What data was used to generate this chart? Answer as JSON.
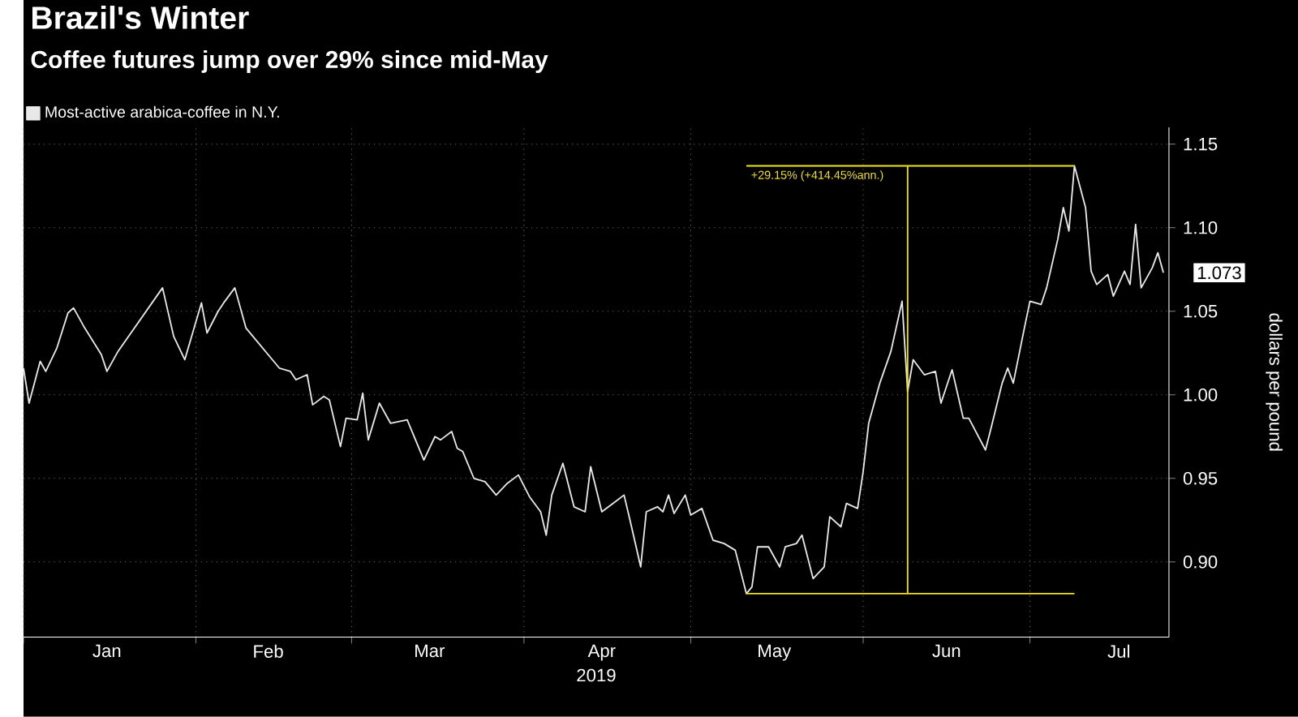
{
  "chart_data": {
    "type": "line",
    "title": "Brazil's Winter",
    "subtitle": "Coffee futures jump over 29% since mid-May",
    "xlabel": "2019",
    "ylabel": "dollars per pound",
    "xlim": [
      "2019-01-01",
      "2019-07-26"
    ],
    "ylim": [
      0.855,
      1.16
    ],
    "xticks": [
      {
        "value": "2019-01-01",
        "label": null
      },
      {
        "value": "2019-02-01",
        "label": null
      },
      {
        "value": "2019-03-01",
        "label": null
      },
      {
        "value": "2019-04-01",
        "label": null
      },
      {
        "value": "2019-05-01",
        "label": null
      },
      {
        "value": "2019-06-01",
        "label": null
      },
      {
        "value": "2019-07-01",
        "label": null
      },
      {
        "value": "2019-01-16",
        "label": "Jan"
      },
      {
        "value": "2019-02-14",
        "label": "Feb"
      },
      {
        "value": "2019-03-15",
        "label": "Mar"
      },
      {
        "value": "2019-04-15",
        "label": "Apr"
      },
      {
        "value": "2019-05-16",
        "label": "May"
      },
      {
        "value": "2019-06-16",
        "label": "Jun"
      },
      {
        "value": "2019-07-17",
        "label": "Jul"
      }
    ],
    "yticks": [
      {
        "value": 0.9,
        "label": "0.90"
      },
      {
        "value": 0.95,
        "label": "0.95"
      },
      {
        "value": 1.0,
        "label": "1.00"
      },
      {
        "value": 1.05,
        "label": "1.05"
      },
      {
        "value": 1.1,
        "label": "1.10"
      },
      {
        "value": 1.15,
        "label": "1.15"
      }
    ],
    "grid": true,
    "legend": "top left",
    "series": [
      {
        "name": "Most-active arabica-coffee in N.Y.",
        "color": "#e8e8e8",
        "x": [
          "2019-01-01",
          "2019-01-02",
          "2019-01-04",
          "2019-01-05",
          "2019-01-07",
          "2019-01-09",
          "2019-01-10",
          "2019-01-12",
          "2019-01-15",
          "2019-01-16",
          "2019-01-18",
          "2019-01-26",
          "2019-01-28",
          "2019-01-30",
          "2019-02-02",
          "2019-02-03",
          "2019-02-05",
          "2019-02-06",
          "2019-02-08",
          "2019-02-10",
          "2019-02-16",
          "2019-02-18",
          "2019-02-19",
          "2019-02-21",
          "2019-02-22",
          "2019-02-24",
          "2019-02-25",
          "2019-02-27",
          "2019-02-28",
          "2019-03-02",
          "2019-03-03",
          "2019-03-04",
          "2019-03-06",
          "2019-03-08",
          "2019-03-11",
          "2019-03-13",
          "2019-03-14",
          "2019-03-16",
          "2019-03-17",
          "2019-03-19",
          "2019-03-20",
          "2019-03-21",
          "2019-03-23",
          "2019-03-25",
          "2019-03-27",
          "2019-03-29",
          "2019-03-31",
          "2019-04-02",
          "2019-04-04",
          "2019-04-05",
          "2019-04-06",
          "2019-04-08",
          "2019-04-10",
          "2019-04-12",
          "2019-04-13",
          "2019-04-15",
          "2019-04-17",
          "2019-04-19",
          "2019-04-20",
          "2019-04-22",
          "2019-04-23",
          "2019-04-25",
          "2019-04-26",
          "2019-04-27",
          "2019-04-28",
          "2019-04-30",
          "2019-05-01",
          "2019-05-03",
          "2019-05-05",
          "2019-05-07",
          "2019-05-09",
          "2019-05-11",
          "2019-05-12",
          "2019-05-13",
          "2019-05-15",
          "2019-05-17",
          "2019-05-18",
          "2019-05-20",
          "2019-05-21",
          "2019-05-23",
          "2019-05-25",
          "2019-05-26",
          "2019-05-28",
          "2019-05-29",
          "2019-05-31",
          "2019-06-01",
          "2019-06-02",
          "2019-06-04",
          "2019-06-06",
          "2019-06-08",
          "2019-06-09",
          "2019-06-10",
          "2019-06-12",
          "2019-06-14",
          "2019-06-15",
          "2019-06-17",
          "2019-06-19",
          "2019-06-20",
          "2019-06-23",
          "2019-06-24",
          "2019-06-26",
          "2019-06-27",
          "2019-06-28",
          "2019-06-30",
          "2019-07-01",
          "2019-07-03",
          "2019-07-04",
          "2019-07-06",
          "2019-07-07",
          "2019-07-08",
          "2019-07-09",
          "2019-07-11",
          "2019-07-12",
          "2019-07-13",
          "2019-07-15",
          "2019-07-16",
          "2019-07-18",
          "2019-07-19",
          "2019-07-20",
          "2019-07-21",
          "2019-07-23",
          "2019-07-24",
          "2019-07-25"
        ],
        "values": [
          1.016,
          0.995,
          1.02,
          1.014,
          1.028,
          1.049,
          1.052,
          1.04,
          1.024,
          1.014,
          1.026,
          1.064,
          1.035,
          1.021,
          1.055,
          1.037,
          1.05,
          1.055,
          1.064,
          1.04,
          1.016,
          1.014,
          1.009,
          1.012,
          0.994,
          0.999,
          0.997,
          0.969,
          0.986,
          0.985,
          1.001,
          0.973,
          0.995,
          0.983,
          0.985,
          0.969,
          0.961,
          0.975,
          0.973,
          0.978,
          0.968,
          0.966,
          0.95,
          0.948,
          0.94,
          0.947,
          0.952,
          0.939,
          0.93,
          0.916,
          0.94,
          0.959,
          0.933,
          0.93,
          0.957,
          0.93,
          0.935,
          0.94,
          0.926,
          0.897,
          0.93,
          0.933,
          0.93,
          0.94,
          0.929,
          0.94,
          0.928,
          0.932,
          0.913,
          0.911,
          0.907,
          0.881,
          0.885,
          0.909,
          0.909,
          0.897,
          0.909,
          0.911,
          0.916,
          0.89,
          0.897,
          0.927,
          0.921,
          0.935,
          0.932,
          0.954,
          0.983,
          1.007,
          1.026,
          1.056,
          1.002,
          1.021,
          1.012,
          1.014,
          0.995,
          1.015,
          0.986,
          0.986,
          0.967,
          0.98,
          1.007,
          1.016,
          1.007,
          1.04,
          1.056,
          1.054,
          1.064,
          1.093,
          1.112,
          1.098,
          1.137,
          1.112,
          1.074,
          1.066,
          1.072,
          1.059,
          1.074,
          1.066,
          1.102,
          1.064,
          1.076,
          1.085,
          1.073
        ]
      },
      {
        "color": "#f2e21a",
        "x": [
          "2019-05-11",
          "2019-07-09"
        ],
        "values": [
          1.137,
          1.137
        ]
      },
      {
        "color": "#f2e21a",
        "x": [
          "2019-05-11",
          "2019-07-09"
        ],
        "values": [
          0.881,
          0.881
        ]
      },
      {
        "color": "#f2e21a",
        "x": [
          "2019-06-09",
          "2019-06-09"
        ],
        "values": [
          0.881,
          1.137
        ]
      }
    ],
    "annotations": [
      {
        "text": "+29.15% (+414.45%ann.)",
        "x": "2019-05-11",
        "y": 1.137
      },
      {
        "text": "1.073",
        "x": "2019-07-25",
        "y": 1.073
      }
    ]
  }
}
